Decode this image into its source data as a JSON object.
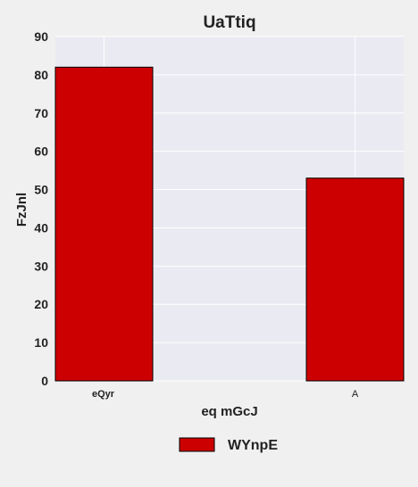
{
  "chart_data": {
    "type": "bar",
    "title": "UaTtiq",
    "xlabel": "eq mGcJ",
    "ylabel": "FzJnl",
    "categories": [
      "eQyr",
      "A"
    ],
    "series": [
      {
        "name": "WYnpE",
        "values": [
          82,
          53
        ],
        "color": "#cc0000"
      }
    ],
    "ylim": [
      0,
      90
    ],
    "yticks": [
      0,
      10,
      20,
      30,
      40,
      50,
      60,
      70,
      80,
      90
    ],
    "grid": true,
    "legend": "bottom-center",
    "colors": {
      "plot_background": "#eaeaf2",
      "page_background": "#f0f0f0",
      "grid": "#ffffff"
    }
  }
}
